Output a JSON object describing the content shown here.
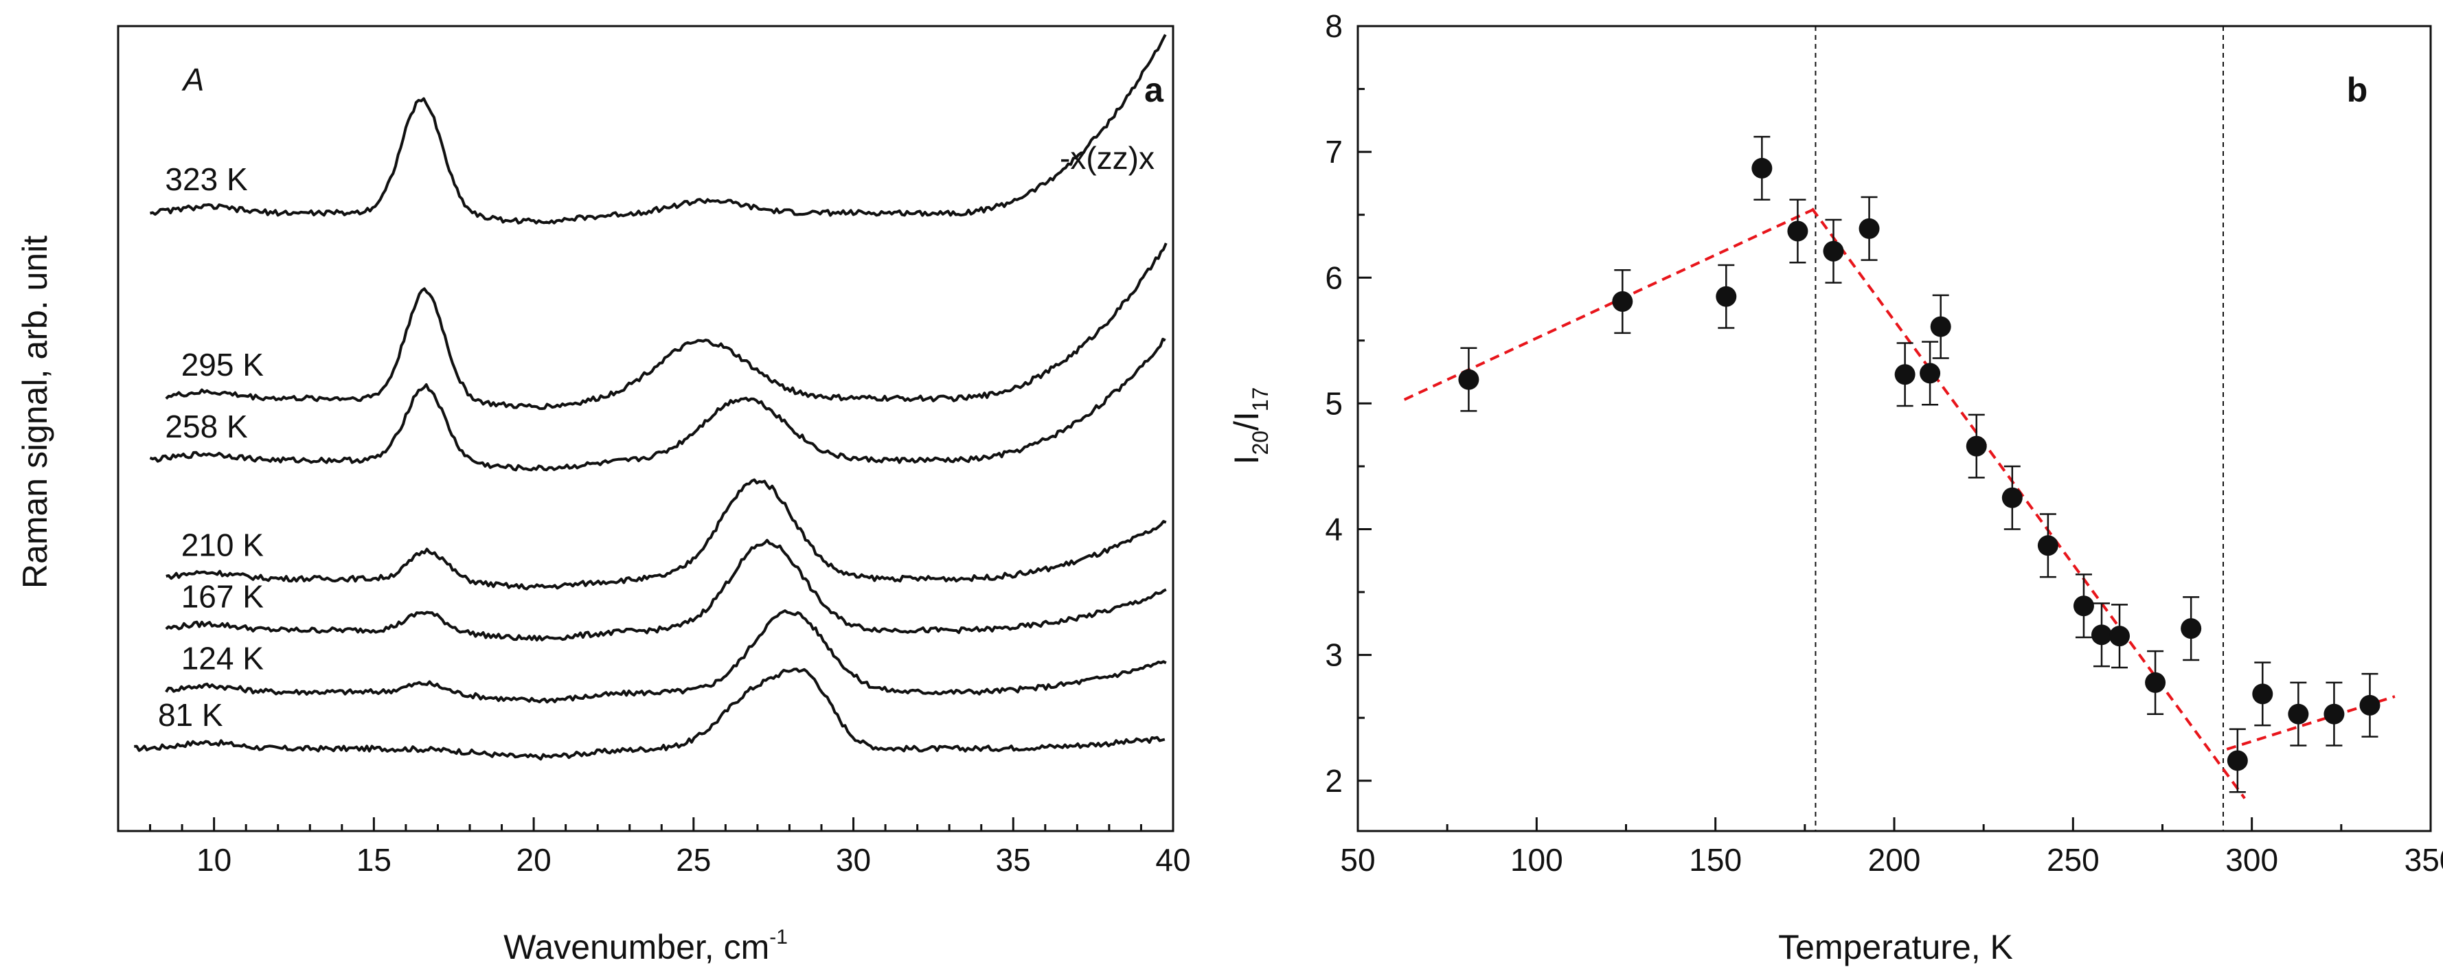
{
  "chart_data": [
    {
      "panel": "a",
      "type": "line",
      "panel_label": "a",
      "corner_label": "A",
      "polarization": "-x(zz)x",
      "xlabel": "Wavenumber, cm",
      "xlabel_sup": "-1",
      "ylabel": "Raman signal, arb. unit",
      "xlim": [
        7,
        40
      ],
      "x_ticks": [
        10,
        15,
        20,
        25,
        30,
        35,
        40
      ],
      "y_ticks": [],
      "series": [
        {
          "name": "81 K",
          "label": "81 K",
          "baseline": 0.4,
          "x_start": 7.5,
          "peaks": [
            {
              "x": 16.5,
              "h": 0.0,
              "w": 0.9
            },
            {
              "x": 27.0,
              "h": 0.55,
              "w": 1.5
            },
            {
              "x": 28.6,
              "h": 0.55,
              "w": 1.1
            }
          ],
          "tail": 0.1,
          "tilt": -0.05
        },
        {
          "name": "124 K",
          "label": "124 K",
          "baseline": 0.95,
          "x_start": 8.5,
          "peaks": [
            {
              "x": 16.6,
              "h": 0.09,
              "w": 0.8
            },
            {
              "x": 28.0,
              "h": 0.78,
              "w": 1.6
            }
          ],
          "tail": 0.3,
          "tilt": 0.0
        },
        {
          "name": "167 K",
          "label": "167 K",
          "baseline": 1.55,
          "x_start": 8.5,
          "peaks": [
            {
              "x": 16.6,
              "h": 0.18,
              "w": 0.8
            },
            {
              "x": 27.3,
              "h": 0.85,
              "w": 1.6
            }
          ],
          "tail": 0.38,
          "tilt": 0.0
        },
        {
          "name": "210 K",
          "label": "210 K",
          "baseline": 2.05,
          "x_start": 8.5,
          "peaks": [
            {
              "x": 16.7,
              "h": 0.28,
              "w": 0.8
            },
            {
              "x": 27.0,
              "h": 0.95,
              "w": 1.6
            }
          ],
          "tail": 0.55,
          "tilt": 0.0
        },
        {
          "name": "258 K",
          "label": "258 K",
          "baseline": 3.2,
          "x_start": 8.0,
          "peaks": [
            {
              "x": 16.6,
              "h": 0.72,
              "w": 0.85
            },
            {
              "x": 26.6,
              "h": 0.6,
              "w": 1.8
            }
          ],
          "tail": 1.2,
          "tilt": 0.0
        },
        {
          "name": "295 K",
          "label": "295 K",
          "baseline": 3.8,
          "x_start": 8.5,
          "peaks": [
            {
              "x": 16.6,
              "h": 1.05,
              "w": 0.85
            },
            {
              "x": 25.3,
              "h": 0.55,
              "w": 2.0
            }
          ],
          "tail": 1.5,
          "tilt": 0.0
        },
        {
          "name": "323 K",
          "label": "323 K",
          "baseline": 5.6,
          "x_start": 8.0,
          "peaks": [
            {
              "x": 16.5,
              "h": 1.1,
              "w": 0.9
            },
            {
              "x": 25.5,
              "h": 0.12,
              "w": 1.5
            }
          ],
          "tail": 1.75,
          "tilt": 0.0
        }
      ]
    },
    {
      "panel": "b",
      "type": "scatter",
      "panel_label": "b",
      "xlabel": "Temperature, K",
      "ylabel": "I",
      "ylabel_sub1": "20",
      "ylabel_mid": "/I",
      "ylabel_sub2": "17",
      "xlim": [
        50,
        350
      ],
      "ylim": [
        1.6,
        8
      ],
      "x_ticks": [
        50,
        100,
        150,
        200,
        250,
        300,
        350
      ],
      "y_ticks": [
        2,
        3,
        4,
        5,
        6,
        7,
        8
      ],
      "error": 0.25,
      "points": [
        {
          "x": 81,
          "y": 5.19
        },
        {
          "x": 124,
          "y": 5.81
        },
        {
          "x": 153,
          "y": 5.85
        },
        {
          "x": 163,
          "y": 6.87
        },
        {
          "x": 173,
          "y": 6.37
        },
        {
          "x": 183,
          "y": 6.21
        },
        {
          "x": 193,
          "y": 6.39
        },
        {
          "x": 203,
          "y": 5.23
        },
        {
          "x": 210,
          "y": 5.24
        },
        {
          "x": 213,
          "y": 5.61
        },
        {
          "x": 223,
          "y": 4.66
        },
        {
          "x": 233,
          "y": 4.25
        },
        {
          "x": 243,
          "y": 3.87
        },
        {
          "x": 253,
          "y": 3.39
        },
        {
          "x": 258,
          "y": 3.16
        },
        {
          "x": 263,
          "y": 3.15
        },
        {
          "x": 273,
          "y": 2.78
        },
        {
          "x": 283,
          "y": 3.21
        },
        {
          "x": 296,
          "y": 2.16
        },
        {
          "x": 303,
          "y": 2.69
        },
        {
          "x": 313,
          "y": 2.53
        },
        {
          "x": 323,
          "y": 2.53
        },
        {
          "x": 333,
          "y": 2.6
        }
      ],
      "fit_lines": [
        {
          "name": "fit-low",
          "x": [
            63,
            178
          ],
          "y": [
            5.03,
            6.55
          ],
          "color": "#e8151b"
        },
        {
          "name": "fit-mid",
          "x": [
            177,
            298
          ],
          "y": [
            6.55,
            1.86
          ],
          "color": "#e8151b"
        },
        {
          "name": "fit-high",
          "x": [
            293,
            340
          ],
          "y": [
            2.25,
            2.67
          ],
          "color": "#e8151b"
        }
      ],
      "vlines": [
        178,
        292
      ]
    }
  ]
}
